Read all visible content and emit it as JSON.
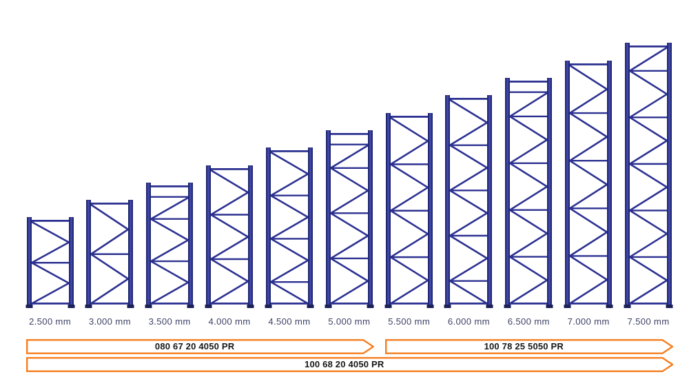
{
  "diagram": {
    "frames": [
      {
        "label": "2.500 mm",
        "height_mm": 2500,
        "top_panel": false,
        "start_right": false
      },
      {
        "label": "3.000 mm",
        "height_mm": 3000,
        "top_panel": false,
        "start_right": false
      },
      {
        "label": "3.500 mm",
        "height_mm": 3500,
        "top_panel": true,
        "start_right": true
      },
      {
        "label": "4.000 mm",
        "height_mm": 4000,
        "top_panel": false,
        "start_right": false
      },
      {
        "label": "4.500 mm",
        "height_mm": 4500,
        "top_panel": false,
        "start_right": false
      },
      {
        "label": "5.000 mm",
        "height_mm": 5000,
        "top_panel": true,
        "start_right": true
      },
      {
        "label": "5.500 mm",
        "height_mm": 5500,
        "top_panel": false,
        "start_right": false
      },
      {
        "label": "6.000 mm",
        "height_mm": 6000,
        "top_panel": false,
        "start_right": false
      },
      {
        "label": "6.500 mm",
        "height_mm": 6500,
        "top_panel": true,
        "start_right": true
      },
      {
        "label": "7.000 mm",
        "height_mm": 7000,
        "top_panel": false,
        "start_right": false
      },
      {
        "label": "7.500 mm",
        "height_mm": 7500,
        "top_panel": false,
        "start_right": true
      }
    ],
    "arrows": [
      {
        "label": "080 67 20 4050 PR",
        "row": 0,
        "from_frame": 0,
        "to_frame": 5
      },
      {
        "label": "100 78 25 5050 PR",
        "row": 0,
        "from_frame": 6,
        "to_frame": 10
      },
      {
        "label": "100 68 20 4050 PR",
        "row": 1,
        "from_frame": 0,
        "to_frame": 10
      }
    ],
    "colors": {
      "frame_main": "#2c3191",
      "post_dark": "#20256f",
      "post_light": "#3e46a6",
      "foot_dark": "#1c2158",
      "label_text": "#3f4468",
      "arrow_border": "#f57d1f",
      "arrow_fill": "#ffffff",
      "arrow_text": "#161616"
    }
  }
}
